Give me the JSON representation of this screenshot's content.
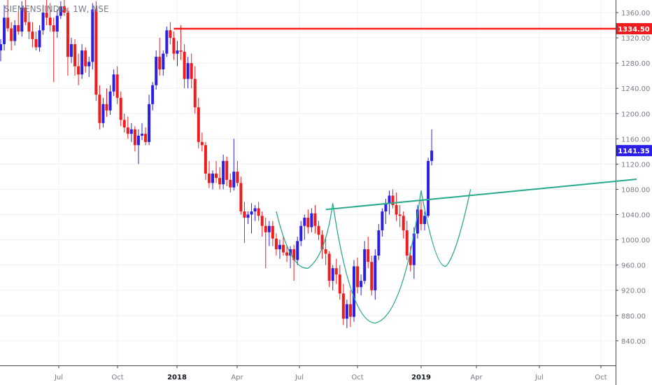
{
  "chart_data": {
    "type": "candlestick",
    "title": "SIEMENS INDIA, 1W, NSE",
    "yticks": [
      840,
      880,
      920,
      960,
      1000,
      1040,
      1080,
      1120,
      1160,
      1200,
      1240,
      1280,
      1320,
      1360
    ],
    "xticks": [
      "Jul",
      "Oct",
      "2018",
      "Apr",
      "Jul",
      "Oct",
      "2019",
      "Apr",
      "Jul",
      "Oct"
    ],
    "ylim": [
      801,
      1380
    ],
    "grid": true,
    "colors": {
      "up": "#2b1fe6",
      "down": "#ee1c1c",
      "resistance": "#ff1a1a",
      "neckline": "#26a98a",
      "price": "#ee1c1c",
      "last": "#2b1fe6"
    },
    "levels": {
      "resistance": 1334.5,
      "last": 1141.35
    },
    "level_labels": {
      "resistance": "1334.50",
      "last": "1141.35"
    },
    "neckline": {
      "from_week": 92,
      "from_price": 1048,
      "to_week": 180,
      "to_price": 1096
    },
    "candles": [
      [
        1300,
        1318,
        1283,
        1310
      ],
      [
        1310,
        1372,
        1300,
        1352
      ],
      [
        1352,
        1380,
        1330,
        1335
      ],
      [
        1335,
        1345,
        1300,
        1315
      ],
      [
        1315,
        1348,
        1308,
        1340
      ],
      [
        1340,
        1362,
        1325,
        1330
      ],
      [
        1330,
        1378,
        1322,
        1368
      ],
      [
        1368,
        1380,
        1340,
        1345
      ],
      [
        1345,
        1360,
        1318,
        1330
      ],
      [
        1330,
        1345,
        1305,
        1318
      ],
      [
        1318,
        1330,
        1300,
        1305
      ],
      [
        1305,
        1340,
        1298,
        1332
      ],
      [
        1332,
        1372,
        1325,
        1360
      ],
      [
        1360,
        1380,
        1340,
        1352
      ],
      [
        1352,
        1375,
        1330,
        1340
      ],
      [
        1340,
        1352,
        1250,
        1330
      ],
      [
        1330,
        1365,
        1320,
        1355
      ],
      [
        1355,
        1378,
        1350,
        1370
      ],
      [
        1370,
        1380,
        1355,
        1360
      ],
      [
        1360,
        1368,
        1260,
        1290
      ],
      [
        1290,
        1320,
        1280,
        1310
      ],
      [
        1310,
        1318,
        1260,
        1275
      ],
      [
        1275,
        1295,
        1245,
        1262
      ],
      [
        1262,
        1310,
        1255,
        1300
      ],
      [
        1300,
        1305,
        1265,
        1275
      ],
      [
        1275,
        1290,
        1258,
        1282
      ],
      [
        1282,
        1375,
        1270,
        1365
      ],
      [
        1365,
        1378,
        1220,
        1230
      ],
      [
        1230,
        1245,
        1175,
        1185
      ],
      [
        1185,
        1225,
        1178,
        1215
      ],
      [
        1215,
        1240,
        1195,
        1205
      ],
      [
        1205,
        1245,
        1198,
        1235
      ],
      [
        1235,
        1270,
        1228,
        1262
      ],
      [
        1262,
        1275,
        1215,
        1225
      ],
      [
        1225,
        1235,
        1180,
        1190
      ],
      [
        1190,
        1200,
        1170,
        1178
      ],
      [
        1178,
        1195,
        1160,
        1168
      ],
      [
        1168,
        1185,
        1155,
        1175
      ],
      [
        1175,
        1180,
        1140,
        1150
      ],
      [
        1150,
        1175,
        1120,
        1165
      ],
      [
        1165,
        1185,
        1158,
        1168
      ],
      [
        1168,
        1178,
        1150,
        1155
      ],
      [
        1155,
        1230,
        1150,
        1215
      ],
      [
        1215,
        1250,
        1205,
        1245
      ],
      [
        1245,
        1300,
        1238,
        1290
      ],
      [
        1290,
        1320,
        1260,
        1270
      ],
      [
        1270,
        1300,
        1260,
        1295
      ],
      [
        1295,
        1338,
        1290,
        1332
      ],
      [
        1332,
        1345,
        1310,
        1320
      ],
      [
        1320,
        1330,
        1285,
        1295
      ],
      [
        1295,
        1315,
        1275,
        1300
      ],
      [
        1300,
        1340,
        1285,
        1298
      ],
      [
        1298,
        1310,
        1240,
        1255
      ],
      [
        1255,
        1290,
        1240,
        1280
      ],
      [
        1280,
        1295,
        1240,
        1255
      ],
      [
        1255,
        1275,
        1200,
        1210
      ],
      [
        1210,
        1225,
        1145,
        1155
      ],
      [
        1155,
        1170,
        1140,
        1150
      ],
      [
        1150,
        1155,
        1095,
        1105
      ],
      [
        1105,
        1125,
        1082,
        1090
      ],
      [
        1090,
        1110,
        1080,
        1105
      ],
      [
        1105,
        1125,
        1090,
        1098
      ],
      [
        1098,
        1115,
        1080,
        1088
      ],
      [
        1088,
        1135,
        1080,
        1125
      ],
      [
        1125,
        1132,
        1085,
        1095
      ],
      [
        1095,
        1105,
        1075,
        1083
      ],
      [
        1083,
        1160,
        1078,
        1108
      ],
      [
        1108,
        1125,
        1085,
        1090
      ],
      [
        1090,
        1100,
        1040,
        1045
      ],
      [
        1045,
        1060,
        995,
        1035
      ],
      [
        1035,
        1045,
        1025,
        1040
      ],
      [
        1040,
        1058,
        1010,
        1045
      ],
      [
        1045,
        1055,
        1030,
        1050
      ],
      [
        1050,
        1060,
        1030,
        1038
      ],
      [
        1038,
        1045,
        1005,
        1022
      ],
      [
        1022,
        1035,
        955,
        1012
      ],
      [
        1012,
        1030,
        990,
        1022
      ],
      [
        1022,
        1030,
        990,
        1002
      ],
      [
        1002,
        1010,
        975,
        985
      ],
      [
        985,
        1000,
        970,
        992
      ],
      [
        992,
        1005,
        975,
        980
      ],
      [
        980,
        992,
        965,
        975
      ],
      [
        975,
        990,
        955,
        985
      ],
      [
        985,
        992,
        935,
        968
      ],
      [
        968,
        1005,
        960,
        998
      ],
      [
        998,
        1030,
        990,
        1022
      ],
      [
        1022,
        1040,
        1000,
        1035
      ],
      [
        1035,
        1048,
        1010,
        1020
      ],
      [
        1020,
        1050,
        1012,
        1042
      ],
      [
        1042,
        1055,
        1010,
        1022
      ],
      [
        1022,
        1030,
        1000,
        1008
      ],
      [
        1008,
        1015,
        970,
        985
      ],
      [
        985,
        1005,
        960,
        978
      ],
      [
        978,
        982,
        925,
        935
      ],
      [
        935,
        960,
        920,
        955
      ],
      [
        955,
        970,
        930,
        945
      ],
      [
        945,
        960,
        905,
        915
      ],
      [
        915,
        930,
        865,
        875
      ],
      [
        875,
        905,
        860,
        898
      ],
      [
        898,
        920,
        862,
        878
      ],
      [
        878,
        968,
        870,
        958
      ],
      [
        958,
        972,
        915,
        925
      ],
      [
        925,
        945,
        912,
        935
      ],
      [
        935,
        998,
        930,
        985
      ],
      [
        985,
        1005,
        955,
        965
      ],
      [
        965,
        975,
        912,
        920
      ],
      [
        920,
        985,
        905,
        975
      ],
      [
        975,
        1025,
        968,
        1015
      ],
      [
        1015,
        1050,
        1005,
        1045
      ],
      [
        1045,
        1065,
        1025,
        1058
      ],
      [
        1058,
        1078,
        1040,
        1070
      ],
      [
        1070,
        1080,
        1050,
        1055
      ],
      [
        1055,
        1075,
        1030,
        1040
      ],
      [
        1040,
        1055,
        1020,
        1038
      ],
      [
        1038,
        1045,
        1002,
        1015
      ],
      [
        1015,
        1030,
        968,
        975
      ],
      [
        975,
        990,
        950,
        960
      ],
      [
        960,
        1020,
        938,
        1010
      ],
      [
        1010,
        1055,
        1002,
        1048
      ],
      [
        1048,
        1062,
        1015,
        1025
      ],
      [
        1025,
        1045,
        1015,
        1038
      ],
      [
        1038,
        1130,
        1035,
        1125
      ],
      [
        1125,
        1175,
        1118,
        1141.35
      ]
    ]
  }
}
